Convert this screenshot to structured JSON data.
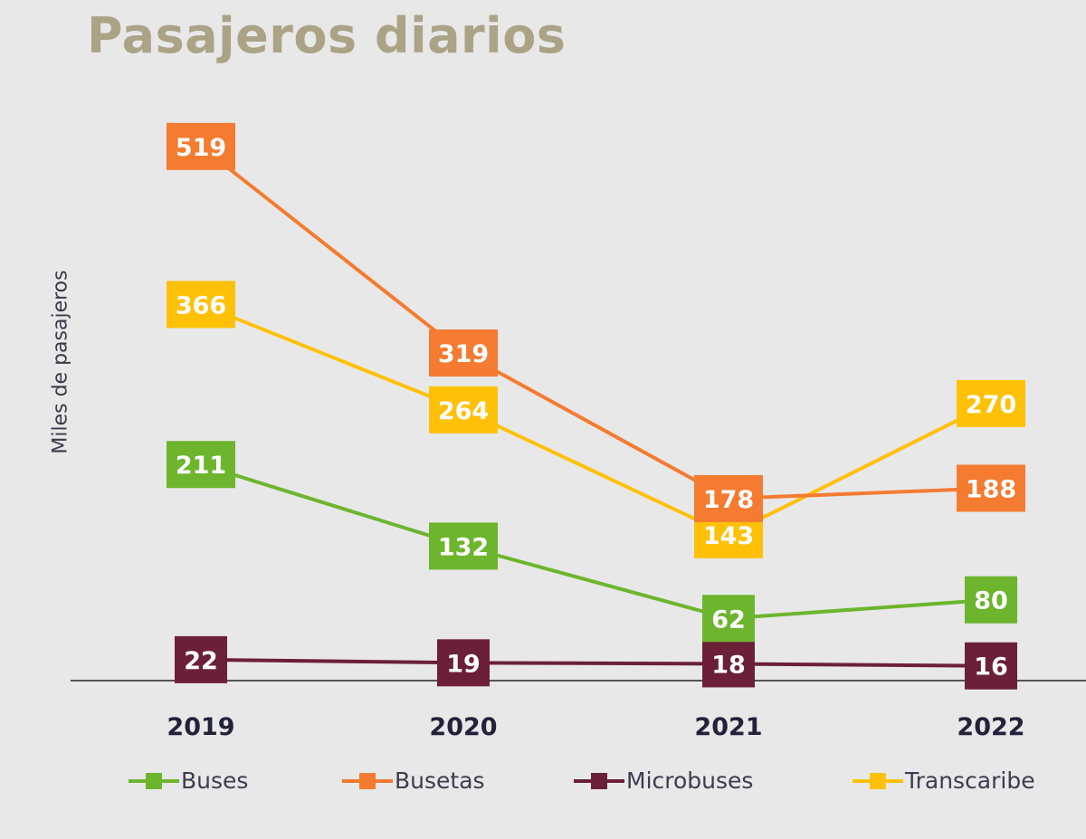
{
  "chart_data": {
    "type": "line",
    "title": "Pasajeros diarios",
    "xlabel": "",
    "ylabel": "Miles de pasajeros",
    "categories": [
      "2019",
      "2020",
      "2021",
      "2022"
    ],
    "ylim": [
      0,
      519
    ],
    "grid": false,
    "legend_position": "bottom",
    "series": [
      {
        "name": "Buses",
        "color": "#6cb52d",
        "values": [
          211,
          132,
          62,
          80
        ]
      },
      {
        "name": "Busetas",
        "color": "#f47b30",
        "values": [
          519,
          319,
          178,
          188
        ]
      },
      {
        "name": "Microbuses",
        "color": "#6b2038",
        "values": [
          22,
          19,
          18,
          16
        ]
      },
      {
        "name": "Transcaribe",
        "color": "#ffc107",
        "values": [
          366,
          264,
          143,
          270
        ]
      }
    ]
  }
}
